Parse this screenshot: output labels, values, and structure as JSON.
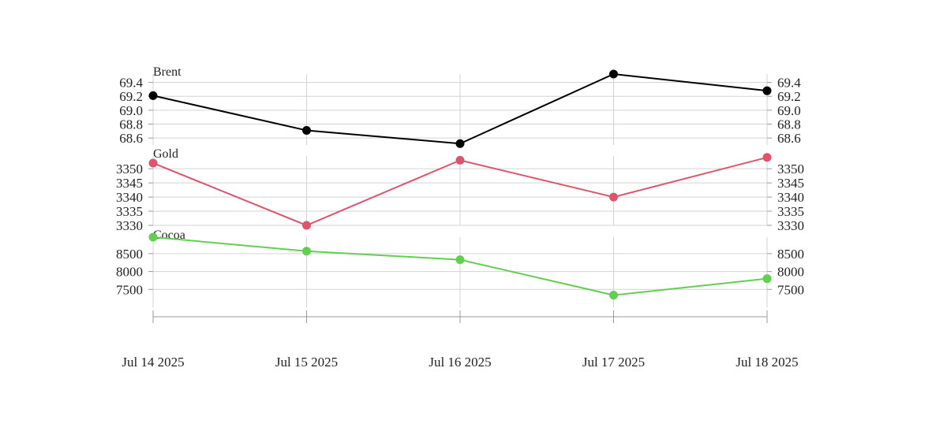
{
  "chart_data": {
    "type": "line",
    "x": [
      "Jul 14 2025",
      "Jul 15 2025",
      "Jul 16 2025",
      "Jul 17 2025",
      "Jul 18 2025"
    ],
    "grid": true,
    "panels": [
      {
        "title": "Brent",
        "color": "#000000",
        "values": [
          69.21,
          68.71,
          68.52,
          69.52,
          69.28
        ],
        "ylim": [
          68.5,
          69.52
        ],
        "yticks": [
          "68.6",
          "68.8",
          "69.0",
          "69.2",
          "69.4"
        ]
      },
      {
        "title": "Gold",
        "color": "#df536b",
        "values": [
          3352,
          3330,
          3353,
          3340,
          3354
        ],
        "ylim": [
          3330,
          3354.5
        ],
        "yticks": [
          "3330",
          "3335",
          "3340",
          "3345",
          "3350"
        ]
      },
      {
        "title": "Cocoa",
        "color": "#61d04f",
        "values": [
          8960,
          8570,
          8330,
          7340,
          7800
        ],
        "ylim": [
          7000,
          8960
        ],
        "yticks": [
          "7500",
          "8000",
          "8500"
        ]
      }
    ]
  }
}
